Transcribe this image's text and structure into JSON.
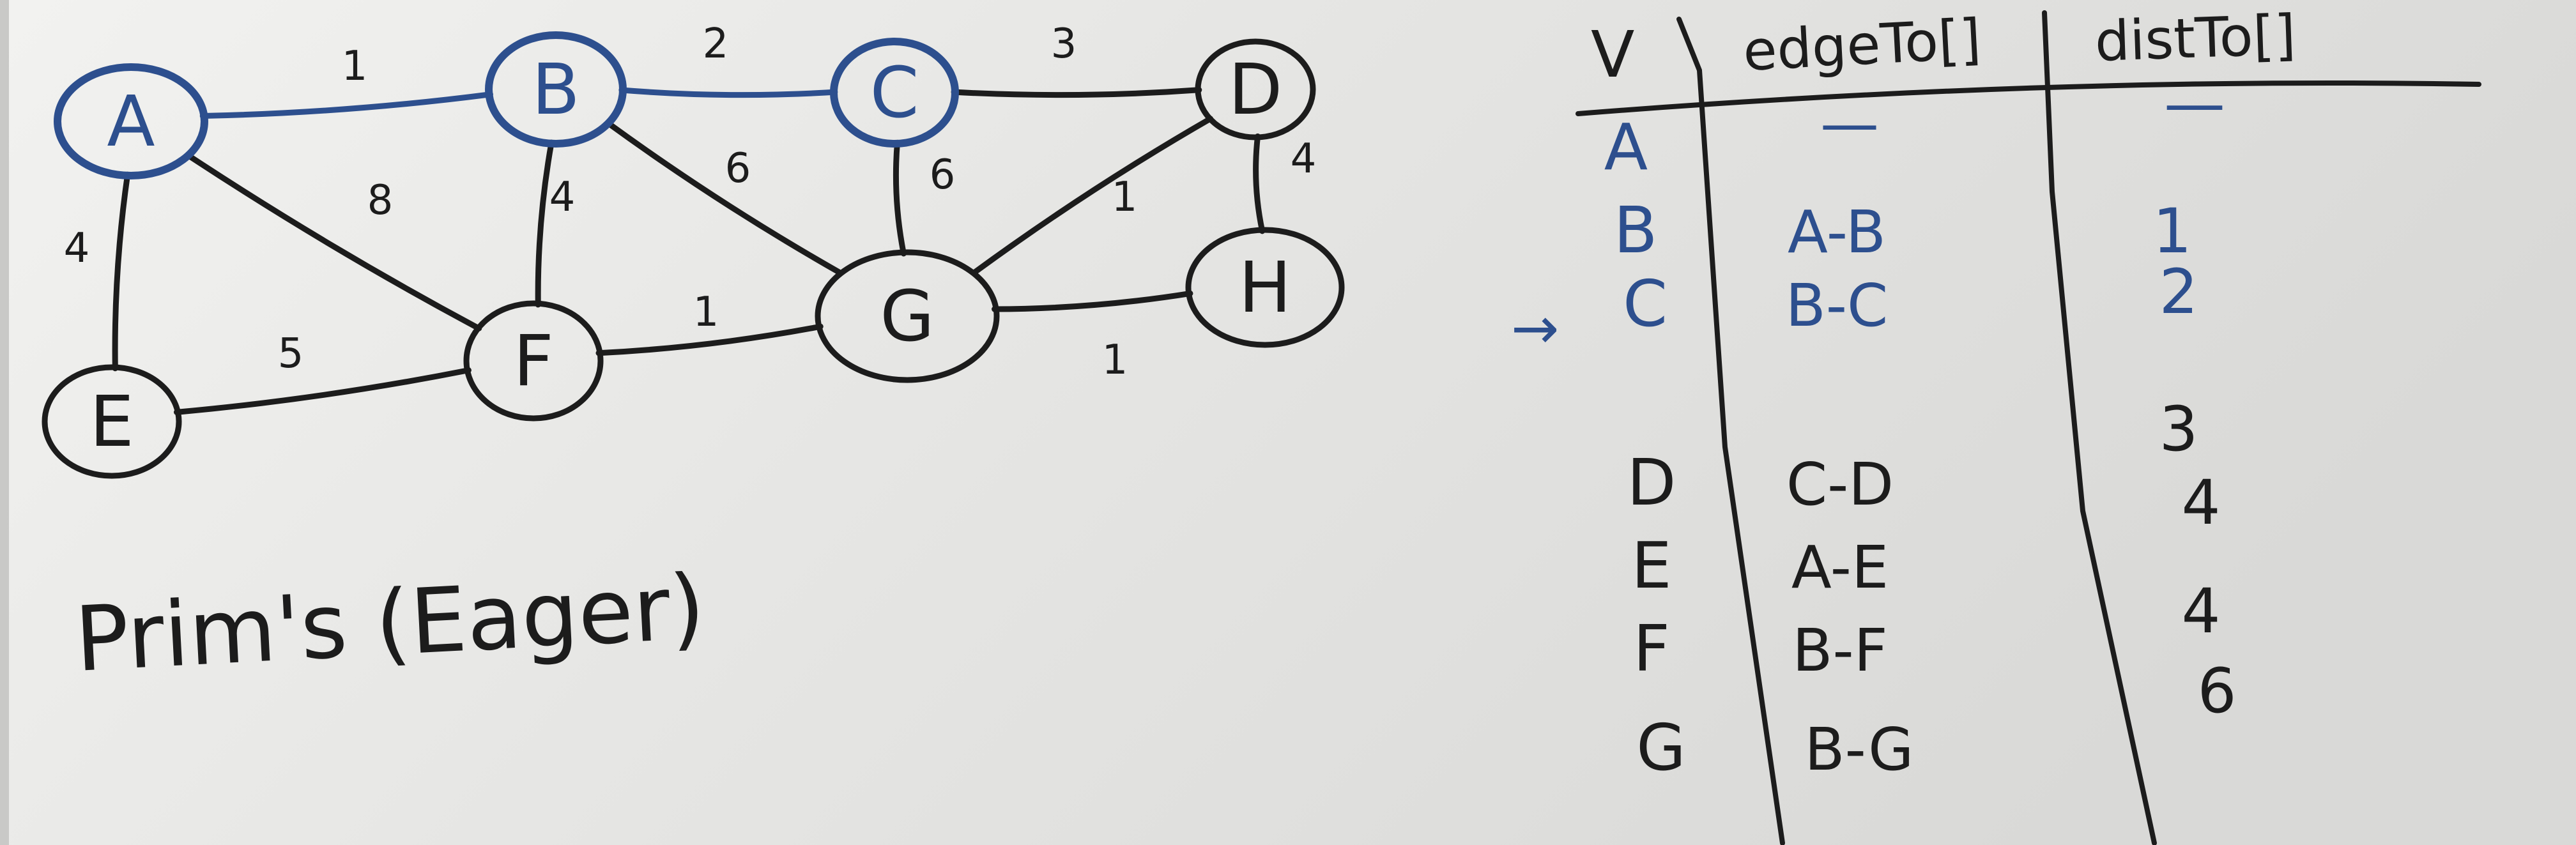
{
  "colors": {
    "board": "#e4e4e2",
    "ink": "#1c1c1c",
    "blue": "#2d4f8e"
  },
  "nodes": [
    {
      "label": "A",
      "ink": "blue"
    },
    {
      "label": "B",
      "ink": "blue"
    },
    {
      "label": "C",
      "ink": "blue"
    },
    {
      "label": "D",
      "ink": "black"
    },
    {
      "label": "E",
      "ink": "black"
    },
    {
      "label": "F",
      "ink": "black"
    },
    {
      "label": "G",
      "ink": "black"
    },
    {
      "label": "H",
      "ink": "black"
    }
  ],
  "edges": [
    {
      "from": "A",
      "to": "B",
      "weight": "1",
      "ink": "blue"
    },
    {
      "from": "B",
      "to": "C",
      "weight": "2",
      "ink": "blue"
    },
    {
      "from": "C",
      "to": "D",
      "weight": "3",
      "ink": "black"
    },
    {
      "from": "A",
      "to": "E",
      "weight": "4",
      "ink": "black"
    },
    {
      "from": "A",
      "to": "F",
      "weight": "8",
      "ink": "black"
    },
    {
      "from": "B",
      "to": "F",
      "weight": "4",
      "ink": "black"
    },
    {
      "from": "B",
      "to": "G",
      "weight": "6",
      "ink": "black"
    },
    {
      "from": "C",
      "to": "G",
      "weight": "6",
      "ink": "black"
    },
    {
      "from": "D",
      "to": "G",
      "weight": "1",
      "ink": "black"
    },
    {
      "from": "D",
      "to": "H",
      "weight": "4",
      "ink": "black"
    },
    {
      "from": "E",
      "to": "F",
      "weight": "5",
      "ink": "black"
    },
    {
      "from": "F",
      "to": "G",
      "weight": "1",
      "ink": "black"
    },
    {
      "from": "G",
      "to": "H",
      "weight": "1",
      "ink": "black"
    }
  ],
  "caption": "Prim's (Eager)",
  "table": {
    "headers": [
      "V",
      "edgeTo[]",
      "distTo[]"
    ],
    "arrow": "→",
    "rows": [
      {
        "v": "A",
        "edge": "—",
        "dist": "—",
        "ink": "blue"
      },
      {
        "v": "B",
        "edge": "A-B",
        "dist": "1",
        "ink": "blue"
      },
      {
        "v": "C",
        "edge": "B-C",
        "dist": "2",
        "ink": "blue"
      },
      {
        "v": "D",
        "edge": "C-D",
        "dist": "3",
        "ink": "black"
      },
      {
        "v": "E",
        "edge": "A-E",
        "dist": "4",
        "ink": "black"
      },
      {
        "v": "F",
        "edge": "B-F",
        "dist": "4",
        "ink": "black"
      },
      {
        "v": "G",
        "edge": "B-G",
        "dist": "6",
        "ink": "black"
      }
    ]
  }
}
